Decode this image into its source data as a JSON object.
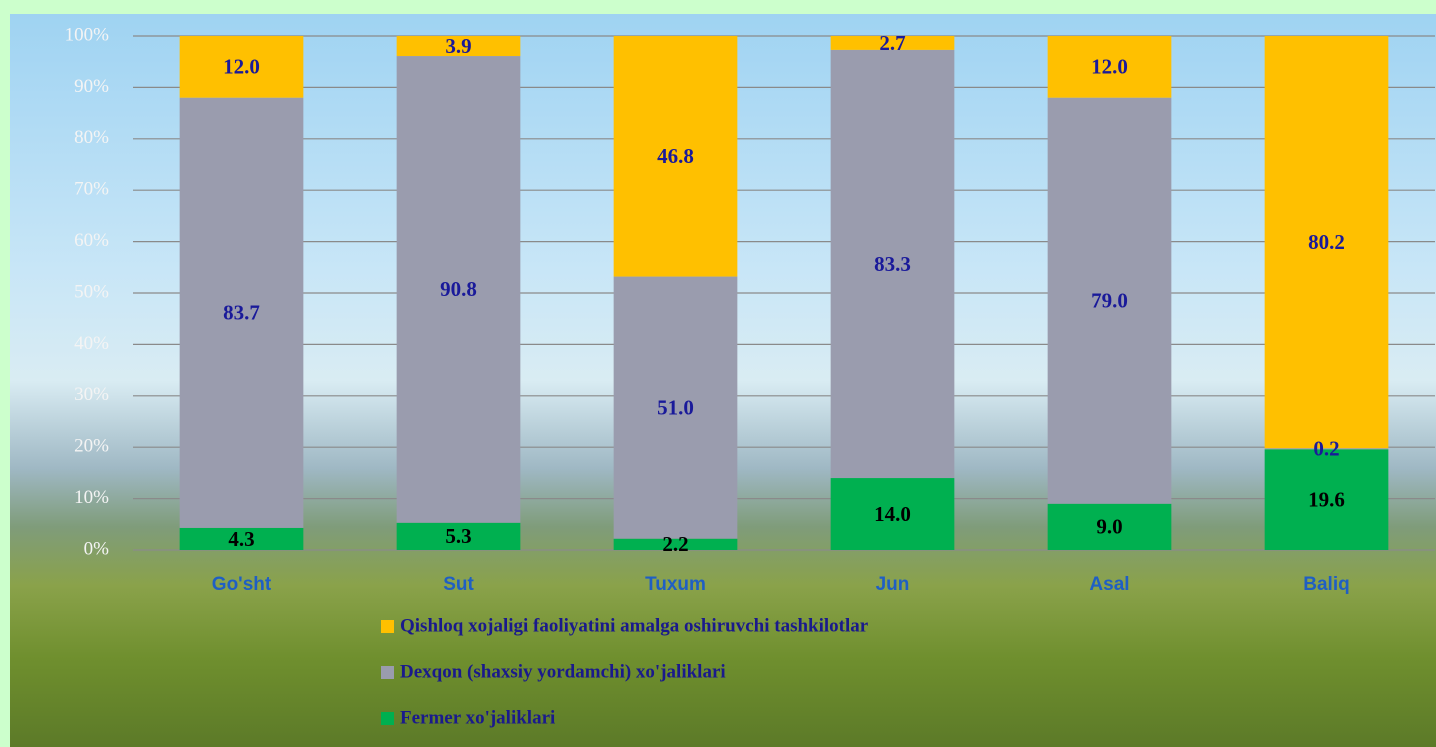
{
  "chart_data": {
    "type": "bar",
    "stacked": true,
    "categories": [
      "Go'sht",
      "Sut",
      "Tuxum",
      "Jun",
      "Asal",
      "Baliq"
    ],
    "series": [
      {
        "name": "Fermer xo'jaliklari",
        "color": "#00b050",
        "values": [
          4.3,
          5.3,
          2.2,
          14.0,
          9.0,
          19.6
        ],
        "value_labels": [
          "4.3",
          "5.3",
          "2.2",
          "14.0",
          "9.0",
          "19.6"
        ],
        "label_color": "#000000"
      },
      {
        "name": "Dexqon (shaxsiy yordamchi) xo'jaliklari",
        "color": "#9a9cae",
        "values": [
          83.7,
          90.8,
          51.0,
          83.3,
          79.0,
          0.2
        ],
        "value_labels": [
          "83.7",
          "90.8",
          "51.0",
          "83.3",
          "79.0",
          "0.2"
        ],
        "label_color": "#1a1a9a"
      },
      {
        "name": "Qishloq xojaligi faoliyatini amalga oshiruvchi tashkilotlar",
        "color": "#ffc000",
        "values": [
          12.0,
          3.9,
          46.8,
          2.7,
          12.0,
          80.2
        ],
        "value_labels": [
          "12.0",
          "3.9",
          "46.8",
          "2.7",
          "12.0",
          "80.2"
        ],
        "label_color": "#1a1a9a"
      }
    ],
    "ylim": [
      0,
      100
    ],
    "yticks": [
      {
        "value": 0,
        "label": "0%"
      },
      {
        "value": 10,
        "label": "10%"
      },
      {
        "value": 20,
        "label": "20%"
      },
      {
        "value": 30,
        "label": "30%"
      },
      {
        "value": 40,
        "label": "40%"
      },
      {
        "value": 50,
        "label": "50%"
      },
      {
        "value": 60,
        "label": "60%"
      },
      {
        "value": 70,
        "label": "70%"
      },
      {
        "value": 80,
        "label": "80%"
      },
      {
        "value": 90,
        "label": "90%"
      },
      {
        "value": 100,
        "label": "100%"
      }
    ],
    "grid": true,
    "legend": "bottom"
  }
}
